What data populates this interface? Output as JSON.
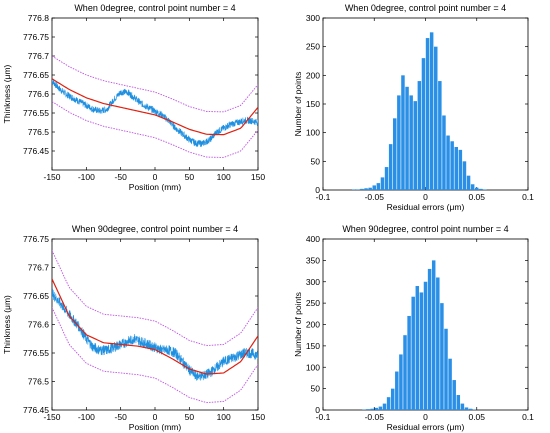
{
  "colors": {
    "measured": "#1f8fe0",
    "fit": "#e02010",
    "bound": "#c050e8",
    "bars": "#2a8fe6"
  },
  "chart_data": [
    {
      "type": "line",
      "title": "When 0degree, control point number = 4",
      "xlabel": "Position (mm)",
      "ylabel": "Thinkness (μm)",
      "xlim": [
        -150,
        150
      ],
      "ylim": [
        776.4,
        776.8
      ],
      "xticks": [
        "-150",
        "-100",
        "-50",
        "0",
        "50",
        "100",
        "150"
      ],
      "yticks": [
        "776.8",
        "776.75",
        "776.7",
        "776.65",
        "776.6",
        "776.55",
        "776.5",
        "776.45"
      ],
      "grid": false,
      "series": [
        {
          "role": "measured",
          "x": [
            -150,
            -140,
            -130,
            -120,
            -110,
            -100,
            -90,
            -80,
            -70,
            -60,
            -50,
            -40,
            -30,
            -20,
            -10,
            0,
            10,
            20,
            30,
            40,
            50,
            60,
            70,
            80,
            90,
            100,
            110,
            120,
            130,
            140,
            150
          ],
          "y": [
            776.635,
            776.615,
            776.6,
            776.59,
            776.58,
            776.57,
            776.56,
            776.555,
            776.56,
            776.585,
            776.605,
            776.605,
            776.59,
            776.575,
            776.565,
            776.555,
            776.545,
            776.53,
            776.51,
            776.495,
            776.48,
            776.47,
            776.47,
            776.48,
            776.5,
            776.51,
            776.52,
            776.525,
            776.53,
            776.53,
            776.525
          ]
        },
        {
          "role": "fit",
          "x": [
            -150,
            -125,
            -100,
            -75,
            -50,
            -25,
            0,
            25,
            50,
            75,
            100,
            125,
            150
          ],
          "y": [
            776.64,
            776.612,
            776.59,
            776.575,
            776.565,
            776.555,
            776.545,
            776.527,
            776.507,
            776.494,
            776.493,
            776.51,
            776.565
          ]
        },
        {
          "role": "bound",
          "x": [
            -150,
            -125,
            -100,
            -75,
            -50,
            -25,
            0,
            25,
            50,
            75,
            100,
            125,
            150
          ],
          "y": [
            776.7,
            776.672,
            776.65,
            776.635,
            776.625,
            776.615,
            776.605,
            776.587,
            776.567,
            776.554,
            776.553,
            776.57,
            776.625
          ]
        },
        {
          "role": "bound",
          "x": [
            -150,
            -125,
            -100,
            -75,
            -50,
            -25,
            0,
            25,
            50,
            75,
            100,
            125,
            150
          ],
          "y": [
            776.58,
            776.552,
            776.53,
            776.515,
            776.505,
            776.495,
            776.485,
            776.467,
            776.447,
            776.434,
            776.433,
            776.45,
            776.505
          ]
        }
      ]
    },
    {
      "type": "bar",
      "title": "When 0degree, control point number = 4",
      "xlabel": "Residual errors (μm)",
      "ylabel": "Number of points",
      "xlim": [
        -0.1,
        0.1
      ],
      "ylim": [
        0,
        300
      ],
      "xticks": [
        "-0.1",
        "-0.05",
        "0",
        "0.05",
        "0.1"
      ],
      "yticks": [
        "0",
        "50",
        "100",
        "150",
        "200",
        "250",
        "300"
      ],
      "x": [
        -0.07,
        -0.066,
        -0.062,
        -0.058,
        -0.054,
        -0.05,
        -0.046,
        -0.042,
        -0.038,
        -0.034,
        -0.03,
        -0.026,
        -0.022,
        -0.018,
        -0.014,
        -0.01,
        -0.006,
        -0.002,
        0.002,
        0.006,
        0.01,
        0.014,
        0.018,
        0.022,
        0.026,
        0.03,
        0.034,
        0.038,
        0.042,
        0.046,
        0.05,
        0.054,
        0.058
      ],
      "values": [
        1,
        1,
        2,
        3,
        4,
        8,
        12,
        22,
        40,
        80,
        125,
        165,
        200,
        180,
        165,
        155,
        190,
        230,
        265,
        275,
        250,
        190,
        130,
        95,
        85,
        75,
        70,
        50,
        25,
        10,
        4,
        2,
        1
      ]
    },
    {
      "type": "line",
      "title": "When 90degree, control point number = 4",
      "xlabel": "Position (mm)",
      "ylabel": "Thinkness (μm)",
      "xlim": [
        -150,
        150
      ],
      "ylim": [
        776.45,
        776.75
      ],
      "xticks": [
        "-150",
        "-100",
        "-50",
        "0",
        "50",
        "100",
        "150"
      ],
      "yticks": [
        "776.75",
        "776.7",
        "776.65",
        "776.6",
        "776.55",
        "776.5",
        "776.45"
      ],
      "grid": false,
      "series": [
        {
          "role": "measured",
          "x": [
            -150,
            -140,
            -130,
            -120,
            -110,
            -100,
            -90,
            -80,
            -70,
            -60,
            -50,
            -40,
            -30,
            -20,
            -10,
            0,
            10,
            20,
            30,
            40,
            50,
            60,
            70,
            80,
            90,
            100,
            110,
            120,
            130,
            140,
            150
          ],
          "y": [
            776.655,
            776.64,
            776.625,
            776.61,
            776.595,
            776.575,
            776.56,
            776.555,
            776.555,
            776.56,
            776.565,
            776.57,
            776.575,
            776.57,
            776.565,
            776.56,
            776.555,
            776.555,
            776.55,
            776.535,
            776.52,
            776.51,
            776.51,
            776.515,
            776.525,
            776.535,
            776.54,
            776.545,
            776.55,
            776.55,
            776.545
          ]
        },
        {
          "role": "fit",
          "x": [
            -150,
            -125,
            -100,
            -75,
            -50,
            -25,
            0,
            25,
            50,
            75,
            100,
            125,
            150
          ],
          "y": [
            776.68,
            776.615,
            776.582,
            776.568,
            776.565,
            776.562,
            776.556,
            776.54,
            776.522,
            776.513,
            776.515,
            776.535,
            776.58
          ]
        },
        {
          "role": "bound",
          "x": [
            -150,
            -125,
            -100,
            -75,
            -50,
            -25,
            0,
            25,
            50,
            75,
            100,
            125,
            150
          ],
          "y": [
            776.73,
            776.665,
            776.632,
            776.618,
            776.615,
            776.612,
            776.606,
            776.59,
            776.572,
            776.563,
            776.565,
            776.585,
            776.63
          ]
        },
        {
          "role": "bound",
          "x": [
            -150,
            -125,
            -100,
            -75,
            -50,
            -25,
            0,
            25,
            50,
            75,
            100,
            125,
            150
          ],
          "y": [
            776.63,
            776.565,
            776.532,
            776.518,
            776.515,
            776.512,
            776.506,
            776.49,
            776.472,
            776.463,
            776.465,
            776.485,
            776.53
          ]
        }
      ]
    },
    {
      "type": "bar",
      "title": "When 90degree, control point number = 4",
      "xlabel": "Residual errors (μm)",
      "ylabel": "Number of points",
      "xlim": [
        -0.1,
        0.1
      ],
      "ylim": [
        0,
        400
      ],
      "xticks": [
        "-0.1",
        "-0.05",
        "0",
        "0.05",
        "0.1"
      ],
      "yticks": [
        "0",
        "50",
        "100",
        "150",
        "200",
        "250",
        "300",
        "350",
        "400"
      ],
      "x": [
        -0.06,
        -0.056,
        -0.052,
        -0.048,
        -0.044,
        -0.04,
        -0.036,
        -0.032,
        -0.028,
        -0.024,
        -0.02,
        -0.016,
        -0.012,
        -0.008,
        -0.004,
        0,
        0.004,
        0.008,
        0.012,
        0.016,
        0.02,
        0.024,
        0.028,
        0.032,
        0.036,
        0.04,
        0.044,
        0.048
      ],
      "values": [
        1,
        2,
        3,
        5,
        8,
        15,
        30,
        50,
        90,
        130,
        175,
        220,
        265,
        290,
        275,
        300,
        330,
        350,
        310,
        250,
        190,
        120,
        70,
        35,
        15,
        6,
        3,
        1
      ]
    }
  ]
}
